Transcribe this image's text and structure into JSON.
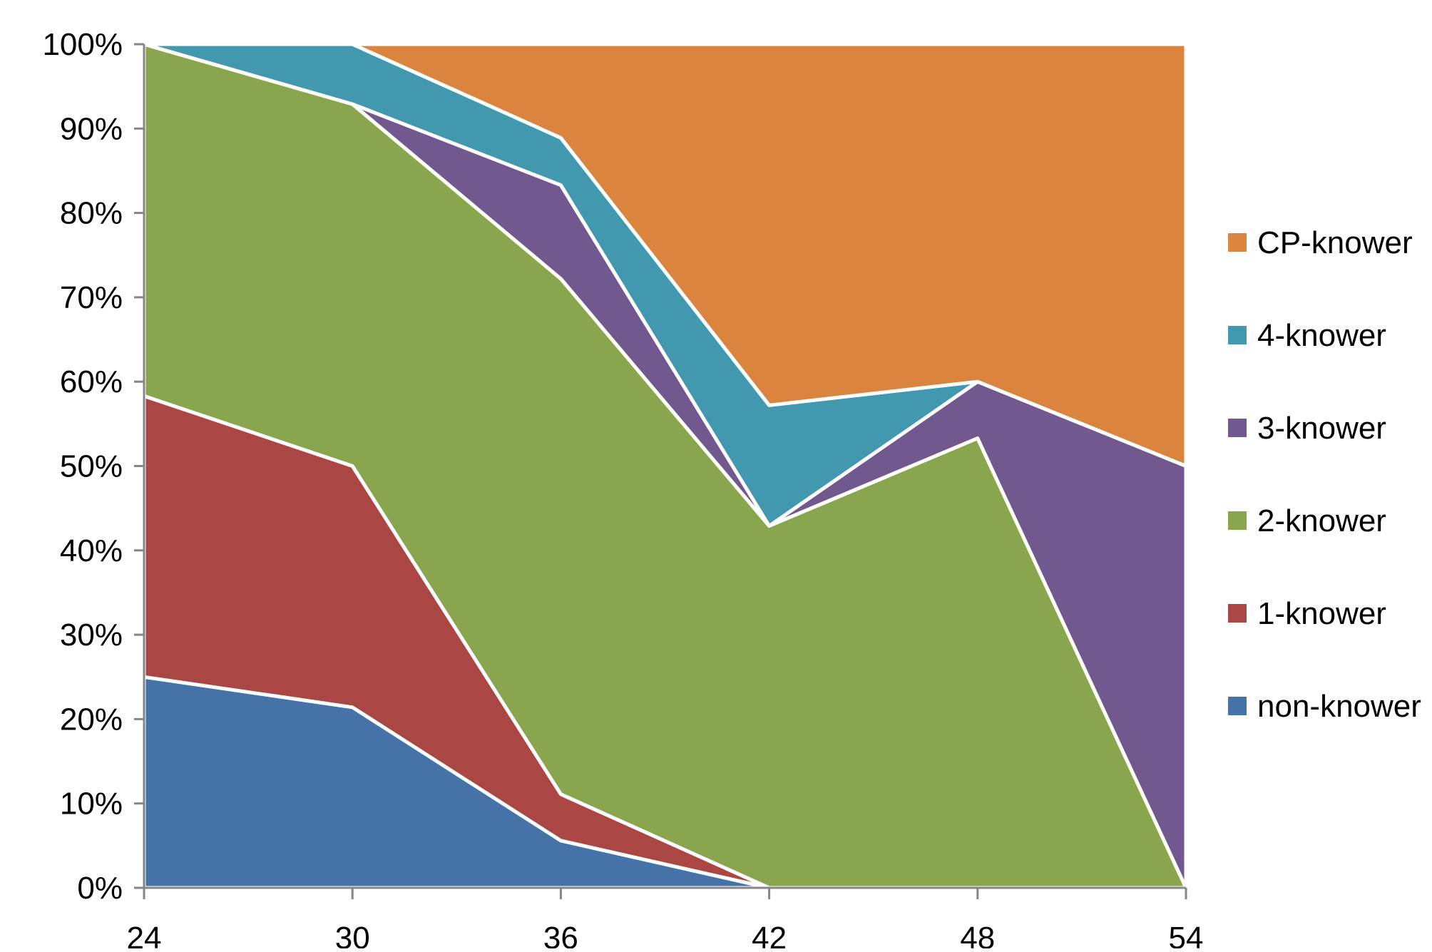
{
  "chart_data": {
    "type": "area",
    "stacked": true,
    "percent": true,
    "title": "",
    "xlabel": "",
    "ylabel": "",
    "x": [
      "24",
      "30",
      "36",
      "42",
      "48",
      "54"
    ],
    "xlim": [
      24,
      54
    ],
    "ylim": [
      0,
      100
    ],
    "y_ticks": [
      "0%",
      "10%",
      "20%",
      "30%",
      "40%",
      "50%",
      "60%",
      "70%",
      "80%",
      "90%",
      "100%"
    ],
    "grid": false,
    "legend_position": "right",
    "series": [
      {
        "name": "non-knower",
        "color": "#4572A7",
        "values": [
          25,
          21.4,
          5.6,
          0,
          0,
          0
        ]
      },
      {
        "name": "1-knower",
        "color": "#AA4643",
        "values": [
          33.3,
          28.6,
          5.5,
          0,
          0,
          0
        ]
      },
      {
        "name": "2-knower",
        "color": "#89A54E",
        "values": [
          41.7,
          42.9,
          61.1,
          42.9,
          53.3,
          0
        ]
      },
      {
        "name": "3-knower",
        "color": "#71588F",
        "values": [
          0,
          0,
          11.1,
          0,
          6.7,
          50
        ]
      },
      {
        "name": "4-knower",
        "color": "#4198AF",
        "values": [
          0,
          7.1,
          5.6,
          14.3,
          0,
          0
        ]
      },
      {
        "name": "CP-knower",
        "color": "#DB843D",
        "values": [
          0,
          0,
          11.1,
          42.8,
          40,
          50
        ]
      }
    ]
  }
}
